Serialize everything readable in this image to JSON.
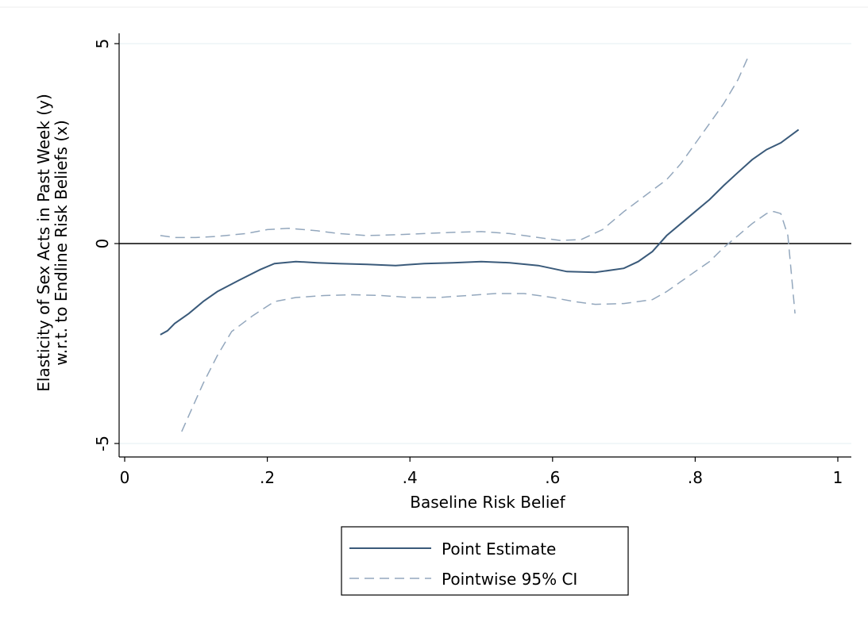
{
  "chart_data": {
    "type": "line",
    "xlabel": "Baseline Risk Belief",
    "ylabel_line1": "Elasticity of Sex Acts in Past Week (y)",
    "ylabel_line2": "w.r.t. to Endline Risk Beliefs (x)",
    "xlim": [
      0,
      1
    ],
    "ylim": [
      -5,
      5
    ],
    "x_ticks": [
      0,
      0.2,
      0.4,
      0.6,
      0.8,
      1
    ],
    "x_tick_labels": [
      "0",
      ".2",
      ".4",
      ".6",
      ".8",
      "1"
    ],
    "y_ticks": [
      -5,
      0,
      5
    ],
    "y_tick_labels": [
      "-5",
      "0",
      "5"
    ],
    "reference_line_y": 0,
    "grid": false,
    "legend_position": "bottom",
    "colors": {
      "point": "#3a5a7a",
      "ci": "#93a7bd",
      "axis": "#000000"
    },
    "series": [
      {
        "name": "Point Estimate",
        "style": "solid",
        "points": [
          [
            0.05,
            -2.28
          ],
          [
            0.06,
            -2.18
          ],
          [
            0.07,
            -2.0
          ],
          [
            0.09,
            -1.75
          ],
          [
            0.11,
            -1.45
          ],
          [
            0.13,
            -1.2
          ],
          [
            0.16,
            -0.92
          ],
          [
            0.19,
            -0.65
          ],
          [
            0.21,
            -0.5
          ],
          [
            0.24,
            -0.45
          ],
          [
            0.27,
            -0.48
          ],
          [
            0.3,
            -0.5
          ],
          [
            0.34,
            -0.52
          ],
          [
            0.38,
            -0.55
          ],
          [
            0.42,
            -0.5
          ],
          [
            0.46,
            -0.48
          ],
          [
            0.5,
            -0.45
          ],
          [
            0.54,
            -0.48
          ],
          [
            0.58,
            -0.55
          ],
          [
            0.62,
            -0.7
          ],
          [
            0.66,
            -0.72
          ],
          [
            0.7,
            -0.62
          ],
          [
            0.72,
            -0.45
          ],
          [
            0.74,
            -0.2
          ],
          [
            0.76,
            0.2
          ],
          [
            0.78,
            0.5
          ],
          [
            0.8,
            0.8
          ],
          [
            0.82,
            1.1
          ],
          [
            0.84,
            1.45
          ],
          [
            0.86,
            1.78
          ],
          [
            0.88,
            2.1
          ],
          [
            0.9,
            2.35
          ],
          [
            0.92,
            2.52
          ],
          [
            0.945,
            2.85
          ]
        ]
      },
      {
        "name": "Pointwise 95% CI",
        "style": "dashed",
        "segments": [
          [
            [
              0.05,
              0.2
            ],
            [
              0.07,
              0.15
            ],
            [
              0.1,
              0.15
            ],
            [
              0.13,
              0.18
            ],
            [
              0.17,
              0.25
            ],
            [
              0.2,
              0.35
            ],
            [
              0.23,
              0.38
            ],
            [
              0.27,
              0.32
            ],
            [
              0.3,
              0.25
            ],
            [
              0.34,
              0.2
            ],
            [
              0.38,
              0.22
            ],
            [
              0.42,
              0.25
            ],
            [
              0.46,
              0.28
            ],
            [
              0.5,
              0.3
            ],
            [
              0.54,
              0.25
            ],
            [
              0.58,
              0.15
            ],
            [
              0.61,
              0.08
            ],
            [
              0.64,
              0.1
            ],
            [
              0.67,
              0.35
            ],
            [
              0.7,
              0.8
            ],
            [
              0.73,
              1.2
            ],
            [
              0.76,
              1.6
            ],
            [
              0.78,
              2.0
            ],
            [
              0.8,
              2.5
            ],
            [
              0.82,
              3.0
            ],
            [
              0.84,
              3.5
            ],
            [
              0.86,
              4.1
            ],
            [
              0.875,
              4.7
            ]
          ],
          [
            [
              0.08,
              -4.7
            ],
            [
              0.09,
              -4.3
            ],
            [
              0.11,
              -3.5
            ],
            [
              0.13,
              -2.8
            ],
            [
              0.15,
              -2.2
            ],
            [
              0.18,
              -1.8
            ],
            [
              0.21,
              -1.45
            ],
            [
              0.24,
              -1.35
            ],
            [
              0.28,
              -1.3
            ],
            [
              0.32,
              -1.28
            ],
            [
              0.36,
              -1.3
            ],
            [
              0.4,
              -1.35
            ],
            [
              0.44,
              -1.35
            ],
            [
              0.48,
              -1.3
            ],
            [
              0.52,
              -1.25
            ],
            [
              0.56,
              -1.25
            ],
            [
              0.6,
              -1.35
            ],
            [
              0.63,
              -1.45
            ],
            [
              0.66,
              -1.52
            ],
            [
              0.7,
              -1.5
            ],
            [
              0.74,
              -1.4
            ],
            [
              0.76,
              -1.2
            ],
            [
              0.78,
              -0.95
            ],
            [
              0.8,
              -0.7
            ],
            [
              0.82,
              -0.45
            ],
            [
              0.84,
              -0.1
            ],
            [
              0.86,
              0.2
            ],
            [
              0.88,
              0.5
            ],
            [
              0.9,
              0.75
            ],
            [
              0.91,
              0.8
            ],
            [
              0.92,
              0.75
            ],
            [
              0.93,
              0.2
            ],
            [
              0.94,
              -1.75
            ]
          ]
        ]
      }
    ]
  }
}
